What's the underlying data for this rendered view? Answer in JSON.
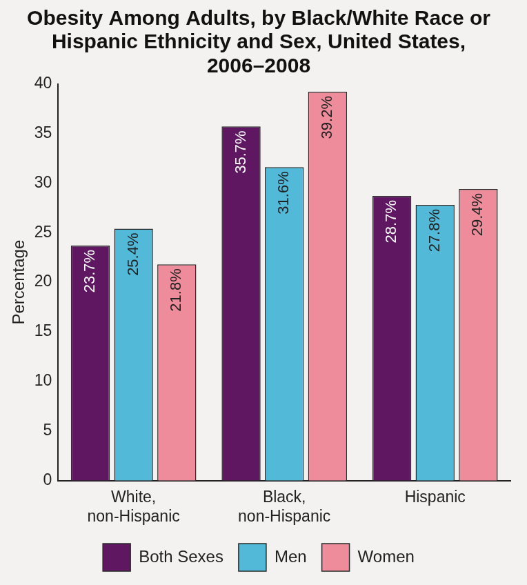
{
  "chart_data": {
    "type": "bar",
    "title": "Obesity Among Adults, by Black/White Race or Hispanic Ethnicity and Sex, United States, 2006–2008",
    "y_label": "Percentage",
    "categories": [
      "White, non-Hispanic",
      "Black, non-Hispanic",
      "Hispanic"
    ],
    "series": [
      {
        "name": "Both Sexes",
        "color": "#5e1760",
        "values": [
          23.7,
          35.7,
          28.7
        ],
        "value_labels": [
          "23.7%",
          "35.7%",
          "28.7%"
        ]
      },
      {
        "name": "Men",
        "color": "#52b9d8",
        "values": [
          25.4,
          31.6,
          27.8
        ],
        "value_labels": [
          "25.4%",
          "31.6%",
          "27.8%"
        ]
      },
      {
        "name": "Women",
        "color": "#ef8c9b",
        "values": [
          21.8,
          39.2,
          29.4
        ],
        "value_labels": [
          "21.8%",
          "39.2%",
          "29.4%"
        ]
      }
    ],
    "ylim": [
      0,
      40
    ],
    "yticks": [
      0,
      5,
      10,
      15,
      20,
      25,
      30,
      35,
      40
    ],
    "grid": false,
    "legend": "bottom",
    "data_labels": true
  }
}
